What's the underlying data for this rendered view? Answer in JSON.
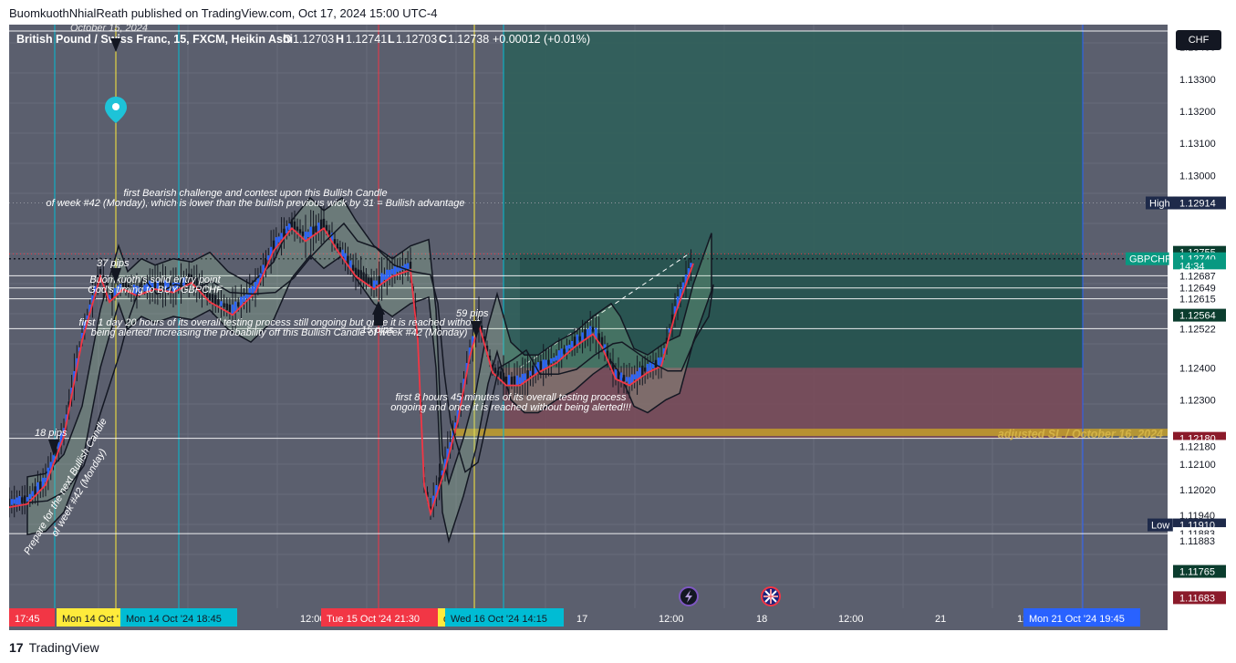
{
  "header": {
    "published_line": "BuomkuothNhialReath published on TradingView.com, Oct 17, 2024 15:00 UTC-4"
  },
  "footer": {
    "logo_text": "TradingView",
    "logo_mark": "17"
  },
  "currency_button": "CHF",
  "legend": {
    "symbol": "British Pound / Swiss Franc, 15, FXCM, Heikin Ashi",
    "o_label": "O",
    "o": "1.12703",
    "h_label": "H",
    "h": "1.12741",
    "l_label": "L",
    "l": "1.12703",
    "c_label": "C",
    "c": "1.12738",
    "change": "+0.00012 (+0.01%)"
  },
  "annotations": {
    "date_top": "October 15, 2024",
    "bearish_1": "first Bearish challenge and contest upon this Bullish Candle",
    "bearish_2": "of week #42 (Monday), which is lower than the bullish previous wick by 31 = Bullish advantage",
    "pips37": "37 pips",
    "entry_1": "Buomkuoth's solid entry point",
    "entry_2": "God's timing to BUY GBPCHF",
    "day_1": "first 1 day 20 hours of its overall testing process still ongoing but once it is reached without",
    "day_2": "being alerted! Increasing the probability off this Bullish Candle of week #42 (Monday)",
    "pips59": "59 pips",
    "pips15": "15 pips",
    "hours_1": "first 8 hours 45 minutes of its overall testing process",
    "hours_2": "ongoing and once it is reached without being alerted!!!",
    "pips18": "18 pips",
    "prepare_1": "Prepare for the next Bullish Candle",
    "prepare_2": "of week #42 (Monday)",
    "sl_label": "adjusted SL / October 16, 2024"
  },
  "price_labels": {
    "high_tag": "High",
    "high": "1.12914",
    "last_top": "1.12755",
    "gbpchf_tag": "GBPCHF",
    "last": "1.12740",
    "countdown": "14:34",
    "p1": "1.12687",
    "p2": "1.12649",
    "p3": "1.12615",
    "p4": "1.12564",
    "p5": "1.12522",
    "p6": "1.12400",
    "sl": "1.12180",
    "sl2": "1.12180",
    "low_tag": "Low",
    "low": "1.11910",
    "p7": "1.11883",
    "p8": "1.11883",
    "p9": "1.11765",
    "p10": "1.11683"
  },
  "time_labels": {
    "t1": "17:45",
    "t2": "Mon 14 Oct '",
    "t3": "Mon 14 Oct '24   18:45",
    "t4": "12:00",
    "t5": "Tue 15 Oct '24   21:30",
    "t6": "d",
    "t7": "Wed 16 Oct '24   14:15",
    "t8": "17",
    "t9": "12:00",
    "t10": "18",
    "t11": "12:00",
    "t12": "21",
    "t13": "12",
    "t14": "Mon 21 Oct '24   19:45"
  },
  "colors": {
    "bg": "#5b5f6e",
    "bull": "#2962ff",
    "bear": "#131722",
    "tp_zone": "#2f5f5a",
    "sl_zone": "#7a4a58",
    "sl_line": "#c9a227",
    "cyan": "#00bcd4",
    "yellow": "#ffeb3b",
    "red": "#f23645",
    "blue": "#2962ff",
    "ema": "#f23645",
    "last_price": "#089981"
  },
  "chart_data": {
    "type": "candlestick",
    "symbol": "GBPCHF",
    "timeframe": "15",
    "style": "Heikin Ashi",
    "ylim": [
      1.1165,
      1.1347
    ],
    "y_ticks": [
      1.134,
      1.133,
      1.132,
      1.131,
      1.13,
      1.123,
      1.121,
      1.1202,
      1.1194
    ],
    "x_ticks": [
      "12:00",
      "17",
      "12:00",
      "18",
      "12:00",
      "21",
      "12"
    ],
    "overall_high": 1.12914,
    "overall_low": 1.1191,
    "last_price": 1.1274,
    "long_position": {
      "entry": 1.124,
      "take_profit": 1.1345,
      "stop_loss": 1.1218
    },
    "horizontal_levels": [
      1.1345,
      1.12687,
      1.12649,
      1.12615,
      1.12522,
      1.1218,
      1.11883
    ],
    "price_path": [
      [
        0,
        1.1198
      ],
      [
        20,
        1.1199
      ],
      [
        40,
        1.1205
      ],
      [
        60,
        1.122
      ],
      [
        80,
        1.125
      ],
      [
        100,
        1.127
      ],
      [
        110,
        1.1262
      ],
      [
        125,
        1.1266
      ],
      [
        140,
        1.1264
      ],
      [
        160,
        1.1266
      ],
      [
        180,
        1.1265
      ],
      [
        200,
        1.1268
      ],
      [
        220,
        1.1262
      ],
      [
        245,
        1.1258
      ],
      [
        270,
        1.1265
      ],
      [
        290,
        1.1278
      ],
      [
        310,
        1.1285
      ],
      [
        325,
        1.1281
      ],
      [
        345,
        1.1285
      ],
      [
        360,
        1.1278
      ],
      [
        380,
        1.127
      ],
      [
        400,
        1.1266
      ],
      [
        420,
        1.127
      ],
      [
        440,
        1.1272
      ],
      [
        448,
        1.125
      ],
      [
        455,
        1.1205
      ],
      [
        462,
        1.1196
      ],
      [
        478,
        1.121
      ],
      [
        492,
        1.1225
      ],
      [
        505,
        1.1245
      ],
      [
        515,
        1.1255
      ],
      [
        530,
        1.124
      ],
      [
        545,
        1.1236
      ],
      [
        560,
        1.1236
      ],
      [
        580,
        1.124
      ],
      [
        600,
        1.1243
      ],
      [
        620,
        1.1248
      ],
      [
        640,
        1.1252
      ],
      [
        650,
        1.1248
      ],
      [
        665,
        1.1238
      ],
      [
        680,
        1.1236
      ],
      [
        700,
        1.124
      ],
      [
        715,
        1.1242
      ],
      [
        730,
        1.1258
      ],
      [
        745,
        1.127
      ],
      [
        750,
        1.1274
      ]
    ]
  }
}
